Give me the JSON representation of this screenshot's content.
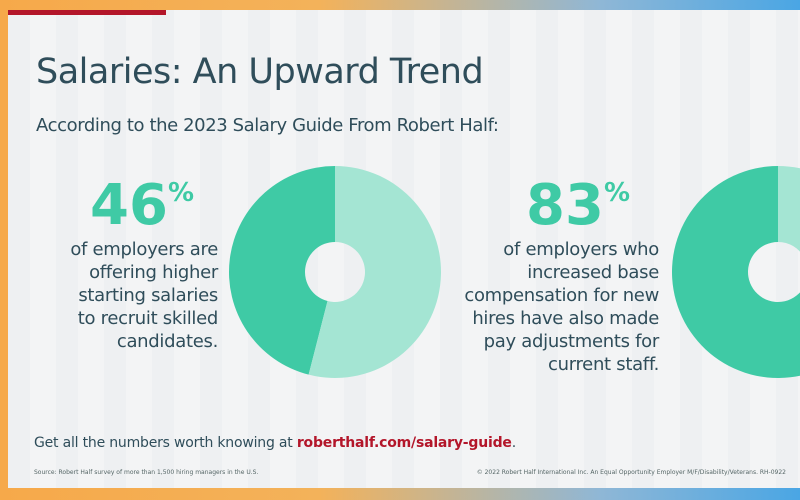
{
  "header": {
    "title": "Salaries: An Upward Trend",
    "subtitle": "According to the 2023 Salary Guide From Robert Half:"
  },
  "stats": [
    {
      "value": "46",
      "unit": "%",
      "lines": [
        "of employers are",
        "offering higher",
        "starting salaries",
        "to recruit skilled",
        "candidates."
      ]
    },
    {
      "value": "83",
      "unit": "%",
      "lines": [
        "of employers who",
        "increased base",
        "compensation for new",
        "hires have also made",
        "pay adjustments for",
        "current staff."
      ]
    }
  ],
  "chart_data": [
    {
      "type": "pie",
      "variant": "donut",
      "values": [
        46,
        54
      ],
      "colors": [
        "#3fcaa5",
        "#a4e5d3"
      ]
    },
    {
      "type": "pie",
      "variant": "donut",
      "values": [
        83,
        17
      ],
      "colors": [
        "#3fcaa5",
        "#a4e5d3"
      ]
    }
  ],
  "footer": {
    "cta_text": "Get all the numbers worth knowing at ",
    "cta_link": "roberthalf.com/salary-guide",
    "cta_end": ".",
    "source": "Source: Robert Half survey of more than 1,500 hiring managers in the U.S.",
    "copyright": "© 2022 Robert Half International Inc. An Equal Opportunity Employer M/F/Disability/Veterans. RH-0922"
  },
  "colors": {
    "accent": "#3fcaa5",
    "accent_light": "#a4e5d3",
    "brand_red": "#b3162a",
    "text": "#2f4d5a"
  }
}
